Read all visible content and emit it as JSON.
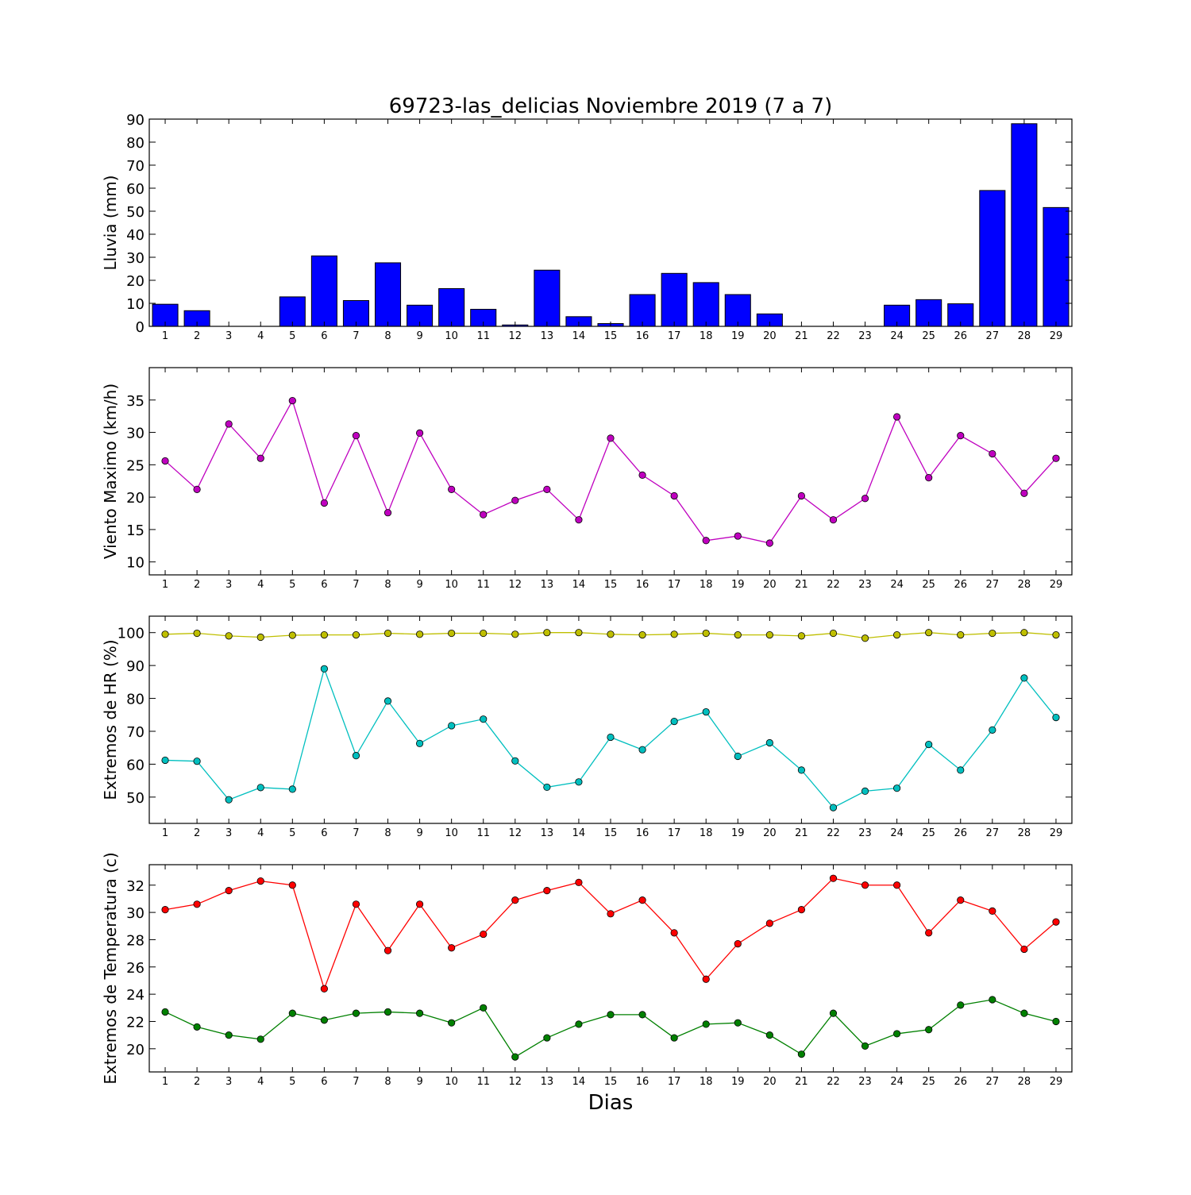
{
  "chart_data": [
    {
      "type": "bar",
      "title": "69723-las_delicias Noviembre 2019  (7 a 7)",
      "ylabel": "Lluvia (mm)",
      "ylim": [
        0,
        90
      ],
      "yticks": [
        0,
        10,
        20,
        30,
        40,
        50,
        60,
        70,
        80,
        90
      ],
      "categories": [
        1,
        2,
        3,
        4,
        5,
        6,
        7,
        8,
        9,
        10,
        11,
        12,
        13,
        14,
        15,
        16,
        17,
        18,
        19,
        20,
        21,
        22,
        23,
        24,
        25,
        26,
        27,
        28,
        29
      ],
      "series": [
        {
          "color": "#0000ff",
          "values": [
            9.6,
            6.8,
            0,
            0,
            12.8,
            30.6,
            11.2,
            27.6,
            9.2,
            16.4,
            7.4,
            0.6,
            24.4,
            4.2,
            1.2,
            13.8,
            23.0,
            19.0,
            13.8,
            5.4,
            0,
            0,
            0,
            9.2,
            11.6,
            9.8,
            59.0,
            88.0,
            51.6
          ]
        }
      ]
    },
    {
      "type": "line",
      "ylabel": "Viento Maximo (km/h)",
      "ylim": [
        8,
        40
      ],
      "yticks": [
        10,
        15,
        20,
        25,
        30,
        35
      ],
      "x": [
        1,
        2,
        3,
        4,
        5,
        6,
        7,
        8,
        9,
        10,
        11,
        12,
        13,
        14,
        15,
        16,
        17,
        18,
        19,
        20,
        21,
        22,
        23,
        24,
        25,
        26,
        27,
        28,
        29
      ],
      "series": [
        {
          "color": "#bf00bf",
          "values": [
            25.6,
            21.2,
            31.3,
            26.0,
            34.9,
            19.1,
            29.5,
            17.6,
            29.9,
            21.2,
            17.3,
            19.5,
            21.2,
            16.5,
            29.1,
            23.4,
            20.2,
            13.3,
            14.0,
            12.9,
            20.2,
            16.5,
            19.8,
            32.4,
            23.0,
            29.5,
            26.7,
            20.6,
            26.0
          ]
        }
      ]
    },
    {
      "type": "line",
      "ylabel": "Extremos de HR (%)",
      "ylim": [
        42,
        105
      ],
      "yticks": [
        50,
        60,
        70,
        80,
        90,
        100
      ],
      "x": [
        1,
        2,
        3,
        4,
        5,
        6,
        7,
        8,
        9,
        10,
        11,
        12,
        13,
        14,
        15,
        16,
        17,
        18,
        19,
        20,
        21,
        22,
        23,
        24,
        25,
        26,
        27,
        28,
        29
      ],
      "series": [
        {
          "color": "#bfbf00",
          "values": [
            99.5,
            99.8,
            99.0,
            98.6,
            99.2,
            99.3,
            99.3,
            99.8,
            99.5,
            99.8,
            99.8,
            99.5,
            100.0,
            100.0,
            99.5,
            99.3,
            99.5,
            99.8,
            99.3,
            99.3,
            99.0,
            99.8,
            98.3,
            99.3,
            100.0,
            99.3,
            99.8,
            100.0,
            99.3
          ]
        },
        {
          "color": "#00bfbf",
          "values": [
            61.2,
            60.9,
            49.2,
            52.9,
            52.4,
            89.0,
            62.6,
            79.2,
            66.3,
            71.7,
            73.7,
            61.0,
            53.0,
            54.6,
            68.2,
            64.4,
            73.0,
            75.9,
            62.4,
            66.5,
            58.2,
            46.8,
            51.8,
            52.7,
            66.0,
            58.2,
            70.4,
            86.2,
            74.2
          ]
        }
      ]
    },
    {
      "type": "line",
      "ylabel": "Extremos de Temperatura (c)",
      "xlabel": "Dias",
      "ylim": [
        18.3,
        33.5
      ],
      "yticks": [
        20,
        22,
        24,
        26,
        28,
        30,
        32
      ],
      "x": [
        1,
        2,
        3,
        4,
        5,
        6,
        7,
        8,
        9,
        10,
        11,
        12,
        13,
        14,
        15,
        16,
        17,
        18,
        19,
        20,
        21,
        22,
        23,
        24,
        25,
        26,
        27,
        28,
        29
      ],
      "series": [
        {
          "color": "#ff0000",
          "values": [
            30.2,
            30.6,
            31.6,
            32.3,
            32.0,
            24.4,
            30.6,
            27.2,
            30.6,
            27.4,
            28.4,
            30.9,
            31.6,
            32.2,
            29.9,
            30.9,
            28.5,
            25.1,
            27.7,
            29.2,
            30.2,
            32.5,
            32.0,
            32.0,
            28.5,
            30.9,
            30.1,
            27.3,
            29.3
          ]
        },
        {
          "color": "#008000",
          "values": [
            22.7,
            21.6,
            21.0,
            20.7,
            22.6,
            22.1,
            22.6,
            22.7,
            22.6,
            21.9,
            23.0,
            19.4,
            20.8,
            21.8,
            22.5,
            22.5,
            20.8,
            21.8,
            21.9,
            21.0,
            19.6,
            22.6,
            20.2,
            21.1,
            21.4,
            23.2,
            23.6,
            22.6,
            22.0
          ]
        }
      ]
    }
  ]
}
